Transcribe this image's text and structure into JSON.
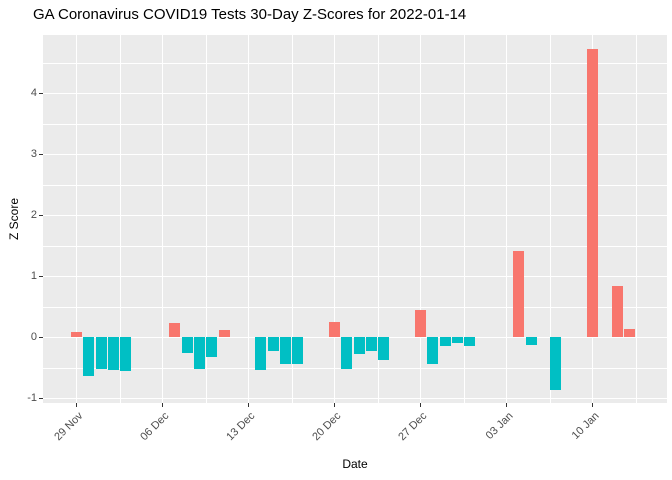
{
  "chart_data": {
    "type": "bar",
    "title": "GA Coronavirus COVID19 Tests 30-Day Z-Scores for 2022-01-14",
    "xlabel": "Date",
    "ylabel": "Z Score",
    "ylim": [
      -1.08,
      4.96
    ],
    "grid": true,
    "legend": "none",
    "colors": {
      "positive": "#F8766D",
      "negative": "#00BFC4",
      "panel_bg": "#EBEBEB",
      "grid": "#FFFFFF",
      "axis_text": "#4D4D4D",
      "title_text": "#000000"
    },
    "y_axis": {
      "major": [
        {
          "label": "-1",
          "value": -1
        },
        {
          "label": "0",
          "value": 0
        },
        {
          "label": "1",
          "value": 1
        },
        {
          "label": "2",
          "value": 2
        },
        {
          "label": "3",
          "value": 3
        },
        {
          "label": "4",
          "value": 4
        }
      ],
      "minor_step": 0.5
    },
    "x_axis": {
      "ticks": [
        {
          "label": "29 Nov",
          "day": 0
        },
        {
          "label": "06 Dec",
          "day": 7
        },
        {
          "label": "13 Dec",
          "day": 14
        },
        {
          "label": "20 Dec",
          "day": 21
        },
        {
          "label": "27 Dec",
          "day": 28
        },
        {
          "label": "03 Jan",
          "day": 35
        },
        {
          "label": "10 Jan",
          "day": 42
        }
      ],
      "minor_offset_days": 3.5
    },
    "points": [
      {
        "date": "29 Nov",
        "day": 0,
        "value": 0.08
      },
      {
        "date": "30 Nov",
        "day": 1,
        "value": -0.64
      },
      {
        "date": "01 Dec",
        "day": 2,
        "value": -0.52
      },
      {
        "date": "02 Dec",
        "day": 3,
        "value": -0.54
      },
      {
        "date": "03 Dec",
        "day": 4,
        "value": -0.56
      },
      {
        "date": "07 Dec",
        "day": 8,
        "value": 0.24
      },
      {
        "date": "08 Dec",
        "day": 9,
        "value": -0.25
      },
      {
        "date": "09 Dec",
        "day": 10,
        "value": -0.52
      },
      {
        "date": "10 Dec",
        "day": 11,
        "value": -0.33
      },
      {
        "date": "11 Dec",
        "day": 12,
        "value": 0.12
      },
      {
        "date": "14 Dec",
        "day": 15,
        "value": -0.54
      },
      {
        "date": "15 Dec",
        "day": 16,
        "value": -0.23
      },
      {
        "date": "16 Dec",
        "day": 17,
        "value": -0.44
      },
      {
        "date": "17 Dec",
        "day": 18,
        "value": -0.43
      },
      {
        "date": "20 Dec",
        "day": 21,
        "value": 0.25
      },
      {
        "date": "21 Dec",
        "day": 22,
        "value": -0.52
      },
      {
        "date": "22 Dec",
        "day": 23,
        "value": -0.27
      },
      {
        "date": "23 Dec",
        "day": 24,
        "value": -0.23
      },
      {
        "date": "24 Dec",
        "day": 25,
        "value": -0.38
      },
      {
        "date": "27 Dec",
        "day": 28,
        "value": 0.44
      },
      {
        "date": "28 Dec",
        "day": 29,
        "value": -0.44
      },
      {
        "date": "29 Dec",
        "day": 30,
        "value": -0.14
      },
      {
        "date": "30 Dec",
        "day": 31,
        "value": -0.1
      },
      {
        "date": "31 Dec",
        "day": 32,
        "value": -0.14
      },
      {
        "date": "04 Jan",
        "day": 36,
        "value": 1.41
      },
      {
        "date": "05 Jan",
        "day": 37,
        "value": -0.13
      },
      {
        "date": "07 Jan",
        "day": 39,
        "value": -0.86
      },
      {
        "date": "10 Jan",
        "day": 42,
        "value": 4.73
      },
      {
        "date": "12 Jan",
        "day": 44,
        "value": 0.84
      },
      {
        "date": "13 Jan",
        "day": 45,
        "value": 0.13
      }
    ]
  }
}
